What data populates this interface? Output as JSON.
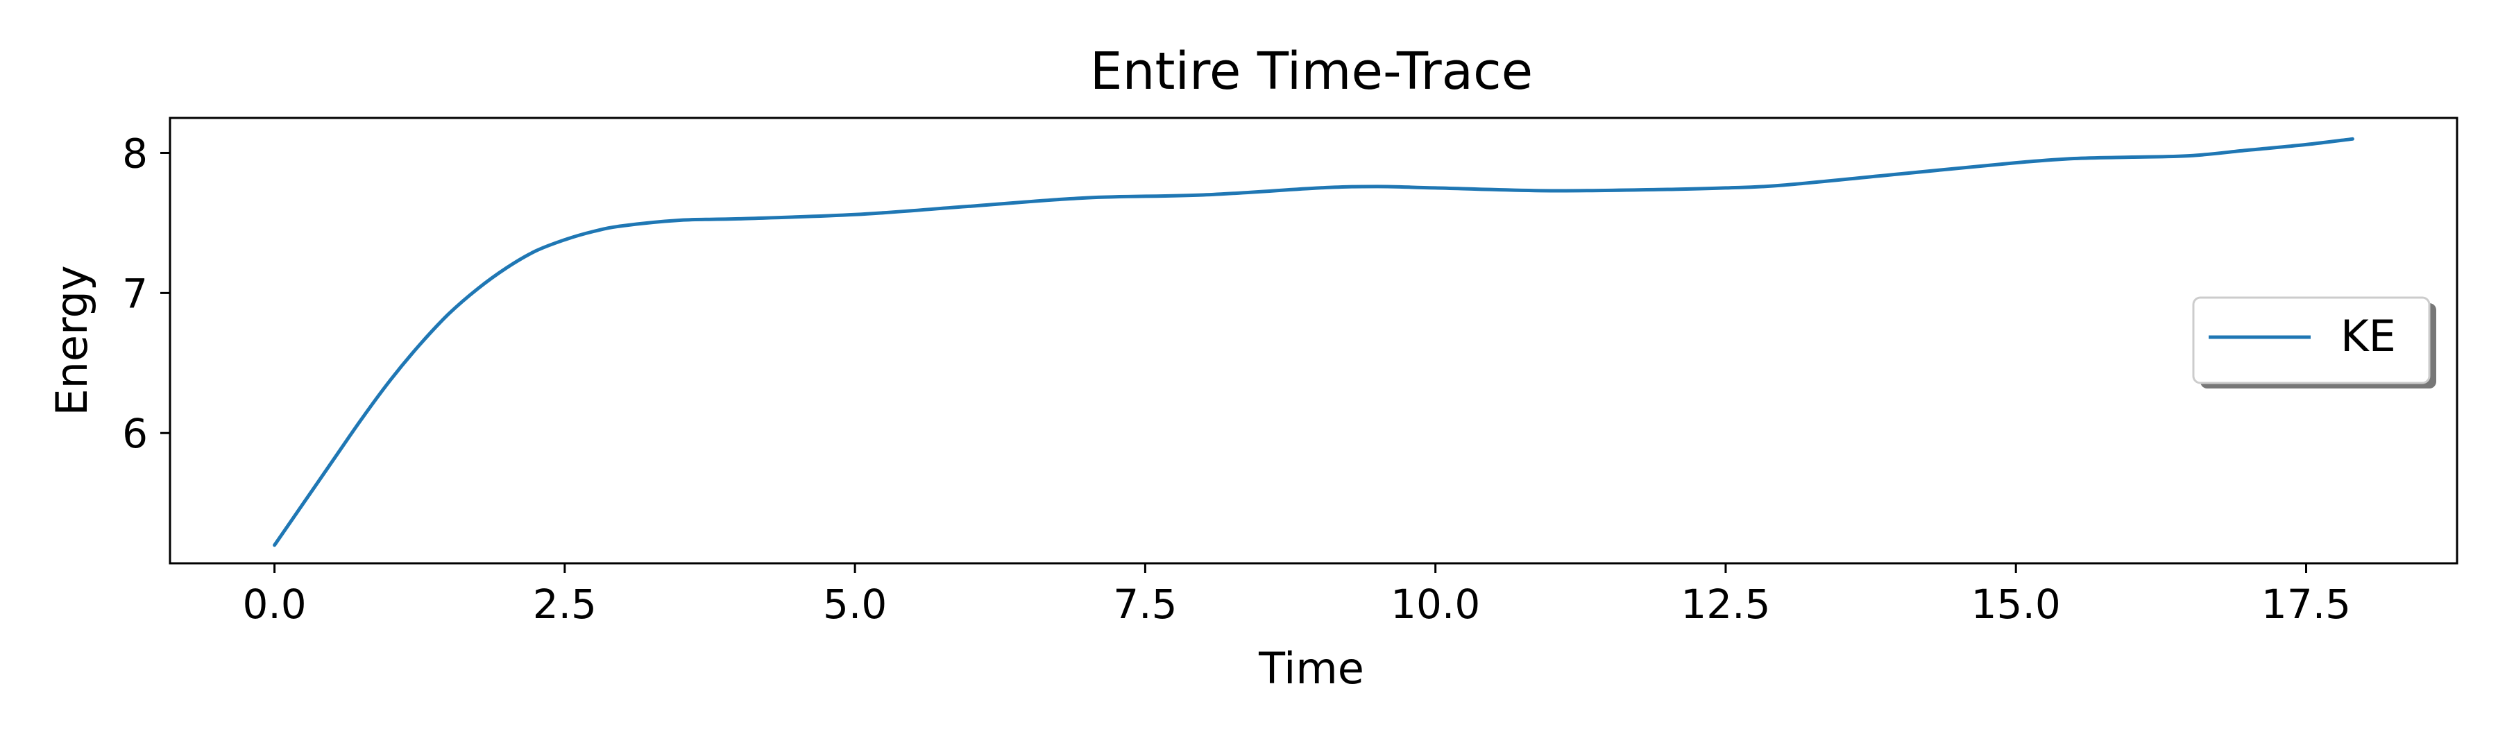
{
  "chart_data": {
    "type": "line",
    "title": "Entire Time-Trace",
    "xlabel": "Time",
    "ylabel": "Energy",
    "xlim": [
      -0.9,
      18.8
    ],
    "ylim": [
      5.07,
      8.25
    ],
    "xticks": [
      0.0,
      2.5,
      5.0,
      7.5,
      10.0,
      12.5,
      15.0,
      17.5
    ],
    "xtick_labels": [
      "0.0",
      "2.5",
      "5.0",
      "7.5",
      "10.0",
      "12.5",
      "15.0",
      "17.5"
    ],
    "yticks": [
      6,
      7,
      8
    ],
    "ytick_labels": [
      "6",
      "7",
      "8"
    ],
    "grid": false,
    "legend_position": "center-right",
    "series": [
      {
        "name": "KE",
        "color": "#1f77b4",
        "x": [
          0.0,
          0.25,
          0.5,
          0.75,
          1.0,
          1.25,
          1.5,
          1.75,
          2.0,
          2.25,
          2.5,
          2.75,
          3.0,
          3.5,
          4.0,
          5.0,
          6.0,
          7.0,
          8.0,
          9.0,
          9.5,
          10.0,
          11.0,
          12.0,
          12.5,
          13.0,
          14.0,
          15.0,
          15.5,
          16.0,
          16.5,
          17.0,
          17.5,
          17.9
        ],
        "y": [
          5.2,
          5.5,
          5.8,
          6.1,
          6.38,
          6.63,
          6.85,
          7.03,
          7.18,
          7.3,
          7.38,
          7.44,
          7.48,
          7.52,
          7.53,
          7.56,
          7.62,
          7.68,
          7.7,
          7.75,
          7.76,
          7.75,
          7.73,
          7.74,
          7.75,
          7.77,
          7.85,
          7.93,
          7.96,
          7.97,
          7.98,
          8.02,
          8.06,
          8.1
        ]
      }
    ]
  }
}
